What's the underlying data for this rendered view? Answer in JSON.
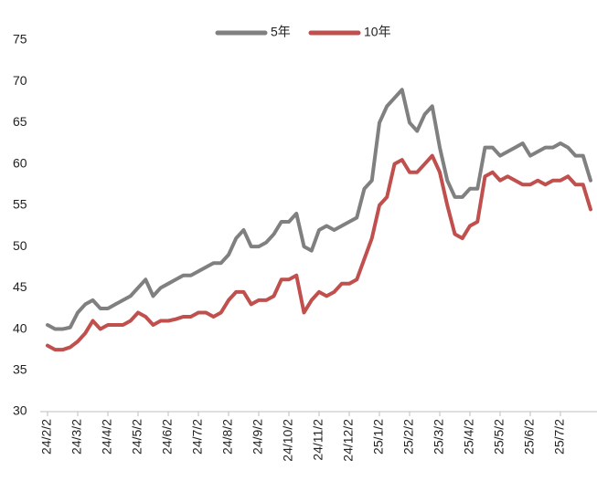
{
  "chart_data": {
    "type": "line",
    "categories": [
      "24/2/2",
      null,
      null,
      null,
      "24/3/2",
      null,
      null,
      null,
      "24/4/2",
      null,
      null,
      null,
      "24/5/2",
      null,
      null,
      null,
      "24/6/2",
      null,
      null,
      null,
      "24/7/2",
      null,
      null,
      null,
      "24/8/2",
      null,
      null,
      null,
      "24/9/2",
      null,
      null,
      null,
      "24/10/2",
      null,
      null,
      null,
      "24/11/2",
      null,
      null,
      null,
      "24/12/2",
      null,
      null,
      null,
      "25/1/2",
      null,
      null,
      null,
      "25/2/2",
      null,
      null,
      null,
      "25/3/2",
      null,
      null,
      null,
      "25/4/2",
      null,
      null,
      null,
      "25/5/2",
      null,
      null,
      null,
      "25/6/2",
      null,
      null,
      null,
      "25/7/2",
      null,
      null,
      null,
      null
    ],
    "series": [
      {
        "name": "5年",
        "color": "#808080",
        "values": [
          40.5,
          40,
          40,
          40.2,
          42,
          43,
          43.5,
          42.5,
          42.5,
          43,
          43.5,
          44,
          45,
          46,
          44,
          45,
          45.5,
          46,
          46.5,
          46.5,
          47,
          47.5,
          48,
          48,
          49,
          51,
          52,
          50,
          50,
          50.5,
          51.5,
          53,
          53,
          54,
          50,
          49.5,
          52,
          52.5,
          52,
          52.5,
          53,
          53.5,
          57,
          58,
          65,
          67,
          68,
          69,
          65,
          64,
          66,
          67,
          62,
          58,
          56,
          56,
          57,
          57,
          62,
          62,
          61,
          61.5,
          62,
          62.5,
          61,
          61.5,
          62,
          62,
          62.5,
          62,
          61,
          61,
          58
        ]
      },
      {
        "name": "10年",
        "color": "#c0504d",
        "values": [
          38,
          37.5,
          37.5,
          37.8,
          38.5,
          39.5,
          41,
          40,
          40.5,
          40.5,
          40.5,
          41,
          42,
          41.5,
          40.5,
          41,
          41,
          41.2,
          41.5,
          41.5,
          42,
          42,
          41.5,
          42,
          43.5,
          44.5,
          44.5,
          43,
          43.5,
          43.5,
          44,
          46,
          46,
          46.5,
          42,
          43.5,
          44.5,
          44,
          44.5,
          45.5,
          45.5,
          46,
          48.5,
          51,
          55,
          56,
          60,
          60.5,
          59,
          59,
          60,
          61,
          59,
          55,
          51.5,
          51,
          52.5,
          53,
          58.5,
          59,
          58,
          58.5,
          58,
          57.5,
          57.5,
          58,
          57.5,
          58,
          58,
          58.5,
          57.5,
          57.5,
          54.5
        ]
      }
    ],
    "ylim": [
      30,
      75
    ],
    "yticks": [
      30,
      35,
      40,
      45,
      50,
      55,
      60,
      65,
      70,
      75
    ]
  }
}
